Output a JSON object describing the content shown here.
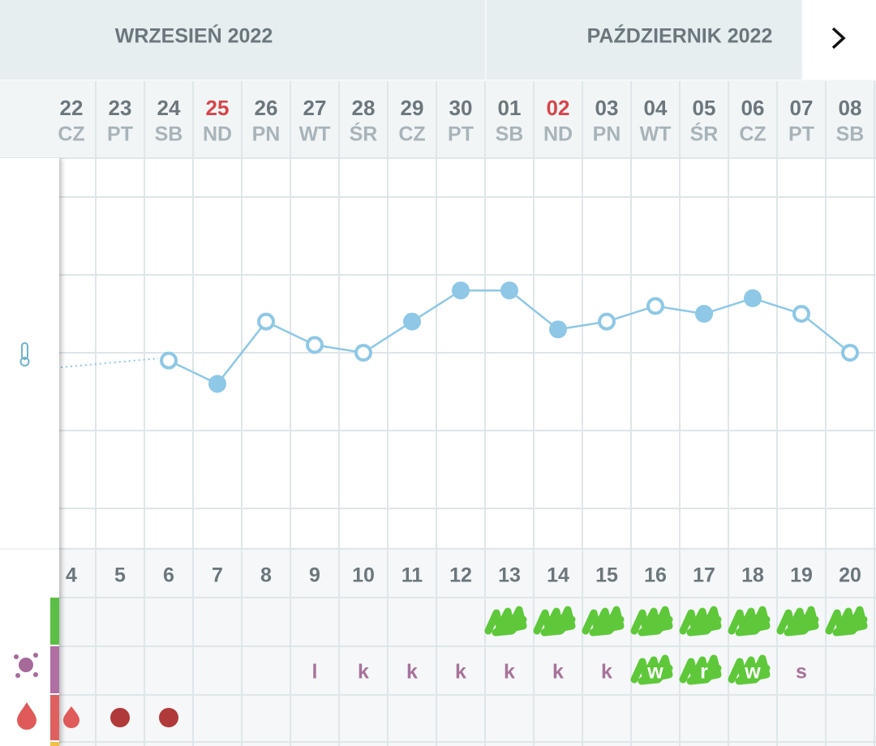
{
  "header": {
    "months": [
      "WRZESIEŃ 2022",
      "PAŹDZIERNIK 2022"
    ]
  },
  "days": [
    {
      "date": "22",
      "weekday": "CZ",
      "red": false
    },
    {
      "date": "23",
      "weekday": "PT",
      "red": false
    },
    {
      "date": "24",
      "weekday": "SB",
      "red": false
    },
    {
      "date": "25",
      "weekday": "ND",
      "red": true
    },
    {
      "date": "26",
      "weekday": "PN",
      "red": false
    },
    {
      "date": "27",
      "weekday": "WT",
      "red": false
    },
    {
      "date": "28",
      "weekday": "ŚR",
      "red": false
    },
    {
      "date": "29",
      "weekday": "CZ",
      "red": false
    },
    {
      "date": "30",
      "weekday": "PT",
      "red": false
    },
    {
      "date": "01",
      "weekday": "SB",
      "red": false
    },
    {
      "date": "02",
      "weekday": "ND",
      "red": true
    },
    {
      "date": "03",
      "weekday": "PN",
      "red": false
    },
    {
      "date": "04",
      "weekday": "WT",
      "red": false
    },
    {
      "date": "05",
      "weekday": "ŚR",
      "red": false
    },
    {
      "date": "06",
      "weekday": "CZ",
      "red": false
    },
    {
      "date": "07",
      "weekday": "PT",
      "red": false
    },
    {
      "date": "08",
      "weekday": "SB",
      "red": false
    }
  ],
  "cycle_days": [
    4,
    5,
    6,
    7,
    8,
    9,
    10,
    11,
    12,
    13,
    14,
    15,
    16,
    17,
    18,
    19,
    20
  ],
  "temperature": {
    "type": "line",
    "color": "#8ec8e6",
    "ylim": [
      36.25,
      36.75
    ],
    "yticks": [
      36.3,
      36.4,
      36.5,
      36.6,
      36.7
    ],
    "values": [
      null,
      null,
      36.49,
      36.46,
      36.54,
      36.51,
      36.5,
      36.54,
      36.58,
      36.58,
      36.53,
      36.54,
      36.56,
      36.55,
      36.57,
      36.55,
      36.5
    ],
    "filled": [
      false,
      false,
      false,
      true,
      false,
      false,
      false,
      true,
      true,
      true,
      true,
      false,
      false,
      true,
      true,
      false,
      false
    ]
  },
  "fertile": [
    false,
    false,
    false,
    false,
    false,
    false,
    false,
    false,
    false,
    true,
    true,
    true,
    true,
    true,
    true,
    true,
    true
  ],
  "mucus": [
    null,
    null,
    null,
    null,
    null,
    "l",
    "k",
    "k",
    "k",
    "k",
    "k",
    "k",
    "w",
    "r",
    "w",
    "s",
    null
  ],
  "mucus_highlight": [
    false,
    false,
    false,
    false,
    false,
    false,
    false,
    false,
    false,
    false,
    false,
    false,
    true,
    true,
    true,
    false,
    false
  ],
  "bleeding": [
    "drop",
    "dot",
    "dot",
    null,
    null,
    null,
    null,
    null,
    null,
    null,
    null,
    null,
    null,
    null,
    null,
    null,
    null
  ]
}
